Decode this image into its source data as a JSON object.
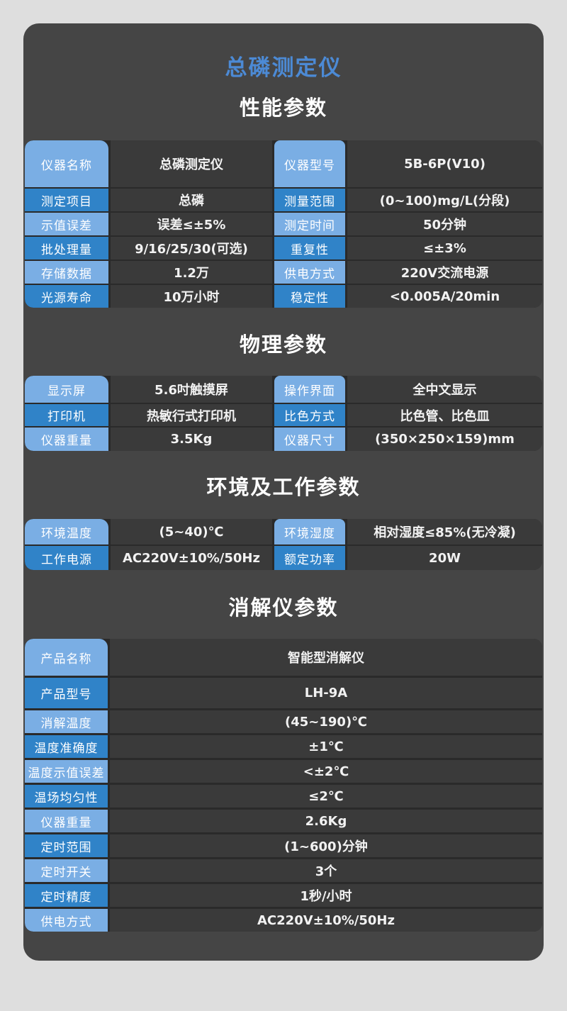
{
  "page": {
    "title": "总磷测定仪"
  },
  "colors": {
    "page_bg": "#DEDEDE",
    "panel_bg": "#454545",
    "cell_bg": "#3A3A3A",
    "label_light": "#7AAEE4",
    "label_dark": "#3083C8",
    "title_blue": "#4C8AD5"
  },
  "performance": {
    "heading": "性能参数",
    "rows": [
      {
        "l1": "仪器名称",
        "v1": "总磷测定仪",
        "l2": "仪器型号",
        "v2": "5B-6P(V10)"
      },
      {
        "l1": "测定项目",
        "v1": "总磷",
        "l2": "测量范围",
        "v2": "(0~100)mg/L(分段)"
      },
      {
        "l1": "示值误差",
        "v1": "误差≤±5%",
        "l2": "测定时间",
        "v2": "50分钟"
      },
      {
        "l1": "批处理量",
        "v1": "9/16/25/30(可选)",
        "l2": "重复性",
        "v2": "≤±3%"
      },
      {
        "l1": "存储数据",
        "v1": "1.2万",
        "l2": "供电方式",
        "v2": "220V交流电源"
      },
      {
        "l1": "光源寿命",
        "v1": "10万小时",
        "l2": "稳定性",
        "v2": "<0.005A/20min"
      }
    ]
  },
  "physical": {
    "heading": "物理参数",
    "rows": [
      {
        "l1": "显示屏",
        "v1": "5.6吋触摸屏",
        "l2": "操作界面",
        "v2": "全中文显示"
      },
      {
        "l1": "打印机",
        "v1": "热敏行式打印机",
        "l2": "比色方式",
        "v2": "比色管、比色皿"
      },
      {
        "l1": "仪器重量",
        "v1": "3.5Kg",
        "l2": "仪器尺寸",
        "v2": "(350×250×159)mm"
      }
    ]
  },
  "environment": {
    "heading": "环境及工作参数",
    "rows": [
      {
        "l1": "环境温度",
        "v1": "(5~40)℃",
        "l2": "环境湿度",
        "v2": "相对湿度≤85%(无冷凝)"
      },
      {
        "l1": "工作电源",
        "v1": "AC220V±10%/50Hz",
        "l2": "额定功率",
        "v2": "20W"
      }
    ]
  },
  "digester": {
    "heading": "消解仪参数",
    "rows": [
      {
        "l": "产品名称",
        "v": "智能型消解仪"
      },
      {
        "l": "产品型号",
        "v": "LH-9A"
      },
      {
        "l": "消解温度",
        "v": "(45~190)℃"
      },
      {
        "l": "温度准确度",
        "v": "±1℃"
      },
      {
        "l": "温度示值误差",
        "v": "<±2℃"
      },
      {
        "l": "温场均匀性",
        "v": "≤2℃"
      },
      {
        "l": "仪器重量",
        "v": "2.6Kg"
      },
      {
        "l": "定时范围",
        "v": "(1~600)分钟"
      },
      {
        "l": "定时开关",
        "v": "3个"
      },
      {
        "l": "定时精度",
        "v": "1秒/小时"
      },
      {
        "l": "供电方式",
        "v": "AC220V±10%/50Hz"
      }
    ]
  }
}
